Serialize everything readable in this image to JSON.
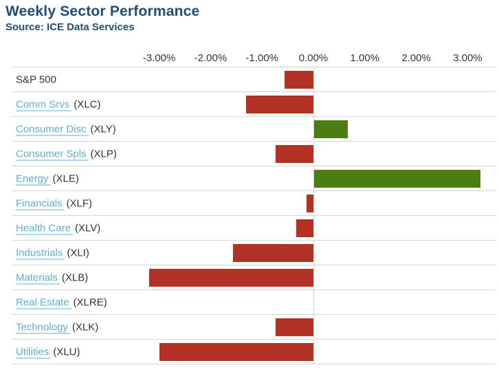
{
  "header": {
    "title": "Weekly Sector Performance",
    "source": "Source: ICE Data Services"
  },
  "colors": {
    "title_navy": "#1f4e79",
    "negative_bar_red": "#b23125",
    "positive_bar_green": "#4c7d11",
    "link_blue": "#5bb2cf",
    "gridline_gray": "#d4d4d4",
    "text_dark": "#333333"
  },
  "chart_data": {
    "type": "bar",
    "orientation": "horizontal",
    "unit": "%",
    "title": "Weekly Sector Performance",
    "subtitle": "Source: ICE Data Services",
    "xlabel": "",
    "ylabel": "",
    "xlim": [
      -3.6,
      3.6
    ],
    "grid": "horizontal-row-separators",
    "legend": "none",
    "x_tick_labels": [
      "-3.00%",
      "-2.00%",
      "-1.00%",
      "0.00%",
      "1.00%",
      "2.00%",
      "3.00%"
    ],
    "x_tick_values": [
      -3,
      -2,
      -1,
      0,
      1,
      2,
      3
    ],
    "rows": [
      {
        "label": "S&P 500",
        "ticker": "",
        "value": -0.56,
        "link": false
      },
      {
        "label": "Comm Srvs",
        "ticker": "(XLC)",
        "value": -1.31,
        "link": true
      },
      {
        "label": "Consumer Disc",
        "ticker": "(XLY)",
        "value": 0.65,
        "link": true
      },
      {
        "label": "Consumer Spls",
        "ticker": "(XLP)",
        "value": -0.73,
        "link": true
      },
      {
        "label": "Energy",
        "ticker": "(XLE)",
        "value": 3.24,
        "link": true
      },
      {
        "label": "Financials",
        "ticker": "(XLF)",
        "value": -0.14,
        "link": true
      },
      {
        "label": "Health Care",
        "ticker": "(XLV)",
        "value": -0.33,
        "link": true
      },
      {
        "label": "Industrials",
        "ticker": "(XLI)",
        "value": -1.56,
        "link": true
      },
      {
        "label": "Materials",
        "ticker": "(XLB)",
        "value": -3.19,
        "link": true
      },
      {
        "label": "Real Estate",
        "ticker": "(XLRE)",
        "value": 0.0,
        "link": true
      },
      {
        "label": "Technology",
        "ticker": "(XLK)",
        "value": -0.74,
        "link": true
      },
      {
        "label": "Utilities",
        "ticker": "(XLU)",
        "value": -3.0,
        "link": true
      }
    ]
  }
}
